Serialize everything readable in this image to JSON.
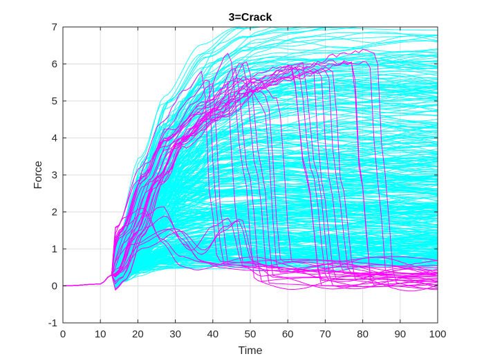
{
  "chart_data": {
    "type": "line",
    "title": "3=Crack",
    "xlabel": "Time",
    "ylabel": "Force",
    "xlim": [
      0,
      100
    ],
    "ylim": [
      -1,
      7
    ],
    "xticks": [
      0,
      10,
      20,
      30,
      40,
      50,
      60,
      70,
      80,
      90,
      100
    ],
    "yticks": [
      -1,
      0,
      1,
      2,
      3,
      4,
      5,
      6,
      7
    ],
    "grid": true,
    "legend": "none",
    "colors": {
      "cyan_group": "#00ffff",
      "magenta_group": "#ff00ff"
    },
    "series_groups": [
      {
        "color": "cyan_group",
        "description_count": 400,
        "representative_curves": [
          {
            "x": [
              0,
              10,
              13,
              18,
              24,
              30,
              40,
              50,
              60,
              70,
              80,
              90,
              100
            ],
            "y": [
              0,
              0.05,
              0.3,
              1.4,
              3.2,
              4.6,
              5.7,
              6.2,
              6.4,
              6.5,
              6.5,
              6.5,
              6.5
            ]
          },
          {
            "x": [
              0,
              10,
              13,
              18,
              24,
              30,
              40,
              50,
              60,
              70,
              80,
              90,
              100
            ],
            "y": [
              0,
              0.05,
              0.3,
              1.1,
              2.4,
              3.6,
              4.8,
              5.4,
              5.6,
              5.7,
              5.7,
              5.7,
              5.7
            ]
          },
          {
            "x": [
              0,
              10,
              13,
              18,
              24,
              30,
              40,
              50,
              60,
              70,
              80,
              90,
              100
            ],
            "y": [
              0,
              0.05,
              0.3,
              0.9,
              1.9,
              2.6,
              3.1,
              3.2,
              3.2,
              3.2,
              3.2,
              3.2,
              3.2
            ]
          },
          {
            "x": [
              0,
              10,
              13,
              18,
              24,
              30,
              40,
              50,
              60,
              70,
              80,
              90,
              100
            ],
            "y": [
              0,
              0.05,
              0.3,
              1.2,
              2.7,
              2.7,
              2.6,
              2.6,
              2.6,
              2.6,
              2.6,
              2.6,
              2.6
            ]
          },
          {
            "x": [
              0,
              10,
              13,
              18,
              24,
              30,
              40,
              50,
              60,
              70,
              80,
              90,
              100
            ],
            "y": [
              0,
              0.05,
              0.3,
              0.8,
              1.3,
              1.6,
              1.8,
              1.9,
              1.9,
              1.9,
              1.9,
              1.9,
              1.9
            ]
          },
          {
            "x": [
              0,
              10,
              13,
              18,
              24,
              30,
              40,
              50,
              60,
              70,
              80,
              90,
              100
            ],
            "y": [
              0,
              0.05,
              0.3,
              0.6,
              0.9,
              1.1,
              1.2,
              1.2,
              1.2,
              1.2,
              1.2,
              1.2,
              1.2
            ]
          },
          {
            "x": [
              0,
              10,
              13,
              18,
              24,
              30,
              40,
              50,
              60,
              70,
              80,
              90,
              100
            ],
            "y": [
              0,
              0.05,
              0.3,
              0.5,
              0.7,
              0.8,
              0.8,
              0.8,
              0.8,
              0.8,
              0.8,
              0.8,
              0.8
            ]
          },
          {
            "x": [
              0,
              10,
              13,
              18,
              24,
              30,
              40,
              50,
              60,
              70,
              80,
              90,
              100
            ],
            "y": [
              0,
              0.05,
              0.3,
              1.3,
              2.9,
              4.0,
              4.9,
              5.0,
              5.0,
              5.0,
              5.0,
              5.0,
              5.0
            ]
          }
        ]
      },
      {
        "color": "magenta_group",
        "description_count": 30,
        "representative_curves": [
          {
            "x": [
              0,
              10,
              13,
              18,
              24,
              30,
              36,
              41,
              43,
              45,
              100
            ],
            "y": [
              0,
              0.05,
              0.3,
              1.5,
              3.0,
              4.2,
              5.0,
              5.5,
              2.0,
              0.5,
              0.4
            ]
          },
          {
            "x": [
              0,
              10,
              13,
              18,
              24,
              30,
              40,
              48,
              52,
              55,
              100
            ],
            "y": [
              0,
              0.05,
              0.3,
              1.4,
              2.8,
              3.9,
              4.7,
              6.1,
              3.0,
              0.1,
              0.05
            ]
          },
          {
            "x": [
              0,
              10,
              13,
              18,
              24,
              30,
              40,
              50,
              60,
              64,
              68,
              100
            ],
            "y": [
              0,
              0.05,
              0.3,
              1.4,
              2.9,
              4.0,
              4.8,
              5.5,
              5.9,
              3.0,
              0.1,
              0.05
            ]
          },
          {
            "x": [
              0,
              10,
              13,
              18,
              24,
              30,
              40,
              50,
              60,
              70,
              80,
              82,
              85,
              100
            ],
            "y": [
              0,
              0.05,
              0.3,
              1.4,
              2.9,
              4.0,
              4.8,
              5.4,
              5.8,
              6.0,
              6.1,
              3.0,
              0.1,
              0.05
            ]
          },
          {
            "x": [
              0,
              10,
              13,
              18,
              24,
              30,
              40,
              50,
              60,
              70,
              72,
              76,
              100
            ],
            "y": [
              0,
              0.05,
              0.3,
              1.3,
              2.7,
              3.8,
              4.6,
              5.3,
              5.7,
              5.9,
              3.0,
              0.3,
              0.3
            ]
          },
          {
            "x": [
              0,
              10,
              13,
              20,
              25,
              30,
              35,
              40,
              45,
              50,
              100
            ],
            "y": [
              0,
              0.05,
              0.3,
              1.7,
              2.0,
              1.2,
              0.7,
              0.6,
              0.6,
              0.6,
              0.6
            ]
          },
          {
            "x": [
              0,
              10,
              13,
              20,
              30,
              36,
              42,
              46,
              50,
              55,
              100
            ],
            "y": [
              0,
              0.05,
              0.3,
              1.0,
              1.5,
              1.0,
              1.7,
              1.9,
              0.6,
              0.3,
              0.3
            ]
          },
          {
            "x": [
              0,
              10,
              13,
              18,
              24,
              30,
              40,
              50,
              56,
              60,
              100
            ],
            "y": [
              0,
              0.05,
              0.3,
              1.5,
              3.1,
              4.1,
              4.9,
              5.6,
              5.0,
              0.5,
              0.4
            ]
          }
        ]
      }
    ]
  }
}
